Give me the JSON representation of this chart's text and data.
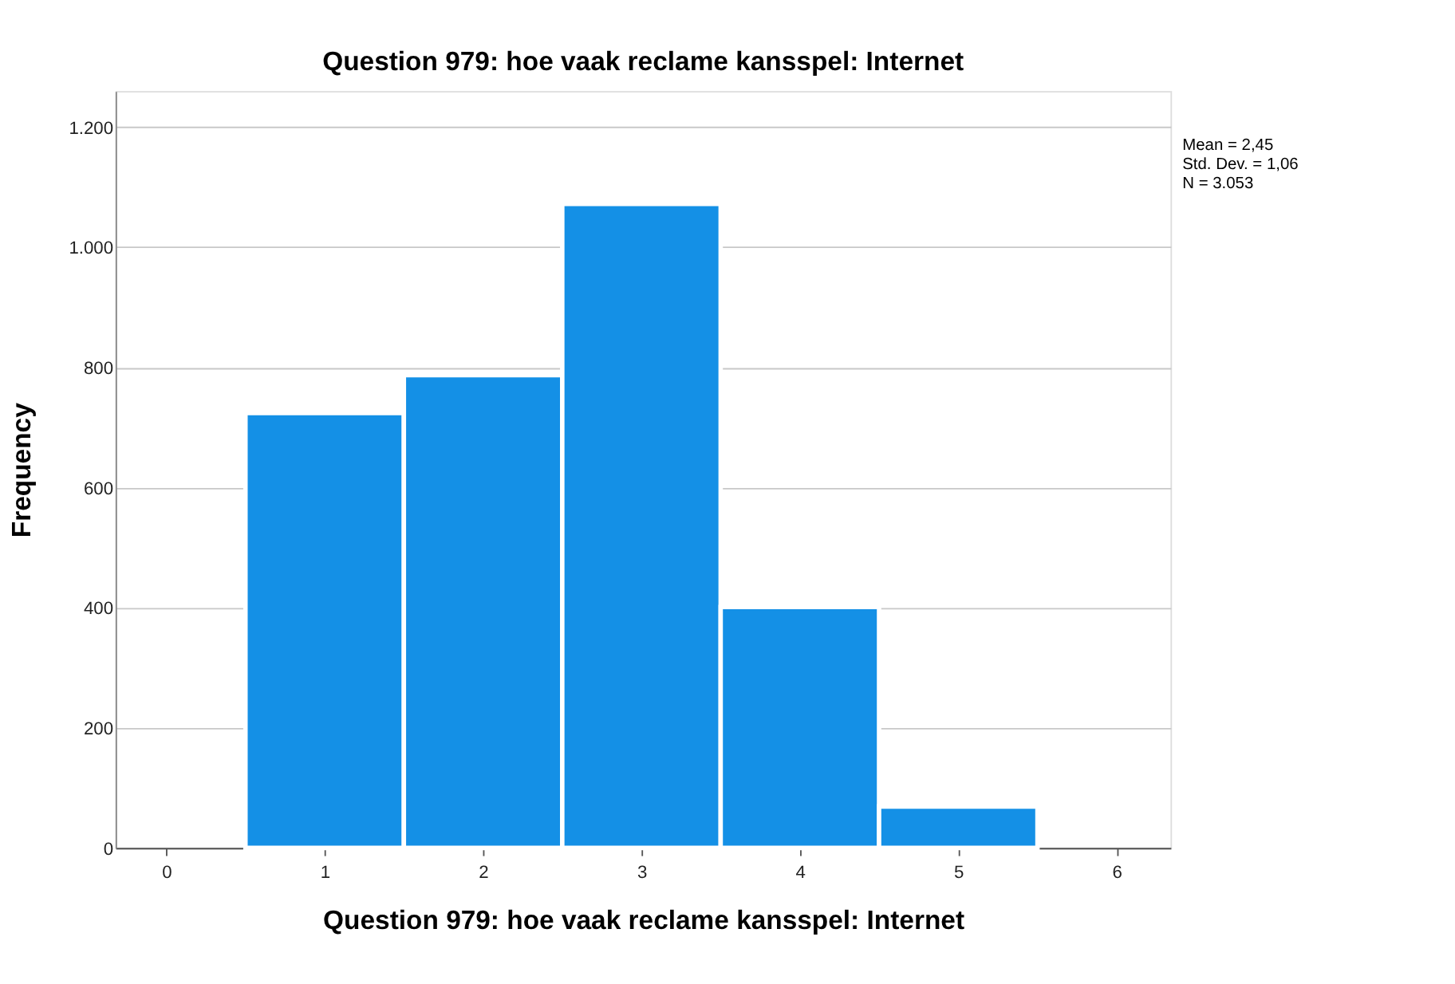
{
  "chart_data": {
    "type": "histogram",
    "title": "Question 979: hoe vaak reclame kansspel: Internet",
    "xlabel": "Question 979: hoe vaak reclame kansspel: Internet",
    "ylabel": "Frequency",
    "bins": [
      0.5,
      1.5,
      2.5,
      3.5,
      4.5,
      5.5
    ],
    "values": [
      724,
      787,
      1072,
      401,
      69
    ],
    "color": "#1490e6",
    "xlim": [
      -0.32,
      6.34
    ],
    "xticks": [
      0,
      1,
      2,
      3,
      4,
      5,
      6
    ],
    "ylim": [
      0,
      1260
    ],
    "yticks": [
      0,
      200,
      400,
      600,
      800,
      {
        "value": 1000,
        "label": "1.000"
      },
      {
        "value": 1200,
        "label": "1.200"
      }
    ],
    "grid": "y",
    "annotations": [
      "Mean = 2,45",
      "Std. Dev. = 1,06",
      "N = 3.053"
    ]
  }
}
